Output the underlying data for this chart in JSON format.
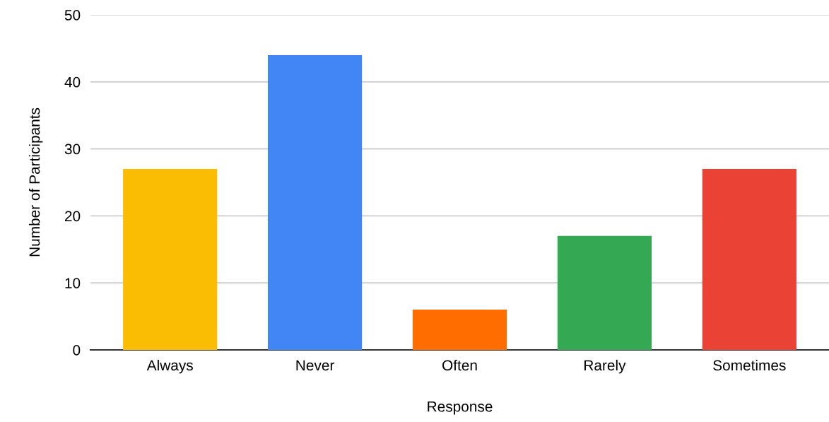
{
  "chart_data": {
    "type": "bar",
    "xlabel": "Response",
    "ylabel": "Number of Participants",
    "categories": [
      "Always",
      "Never",
      "Often",
      "Rarely",
      "Sometimes"
    ],
    "values": [
      27,
      44,
      6,
      17,
      27
    ],
    "colors": [
      "#fbbc04",
      "#4285f4",
      "#ff6d01",
      "#34a853",
      "#ea4335"
    ],
    "ylim": [
      0,
      50
    ],
    "yticks": [
      0,
      10,
      20,
      30,
      40,
      50
    ],
    "grid": "y",
    "legend": false
  }
}
